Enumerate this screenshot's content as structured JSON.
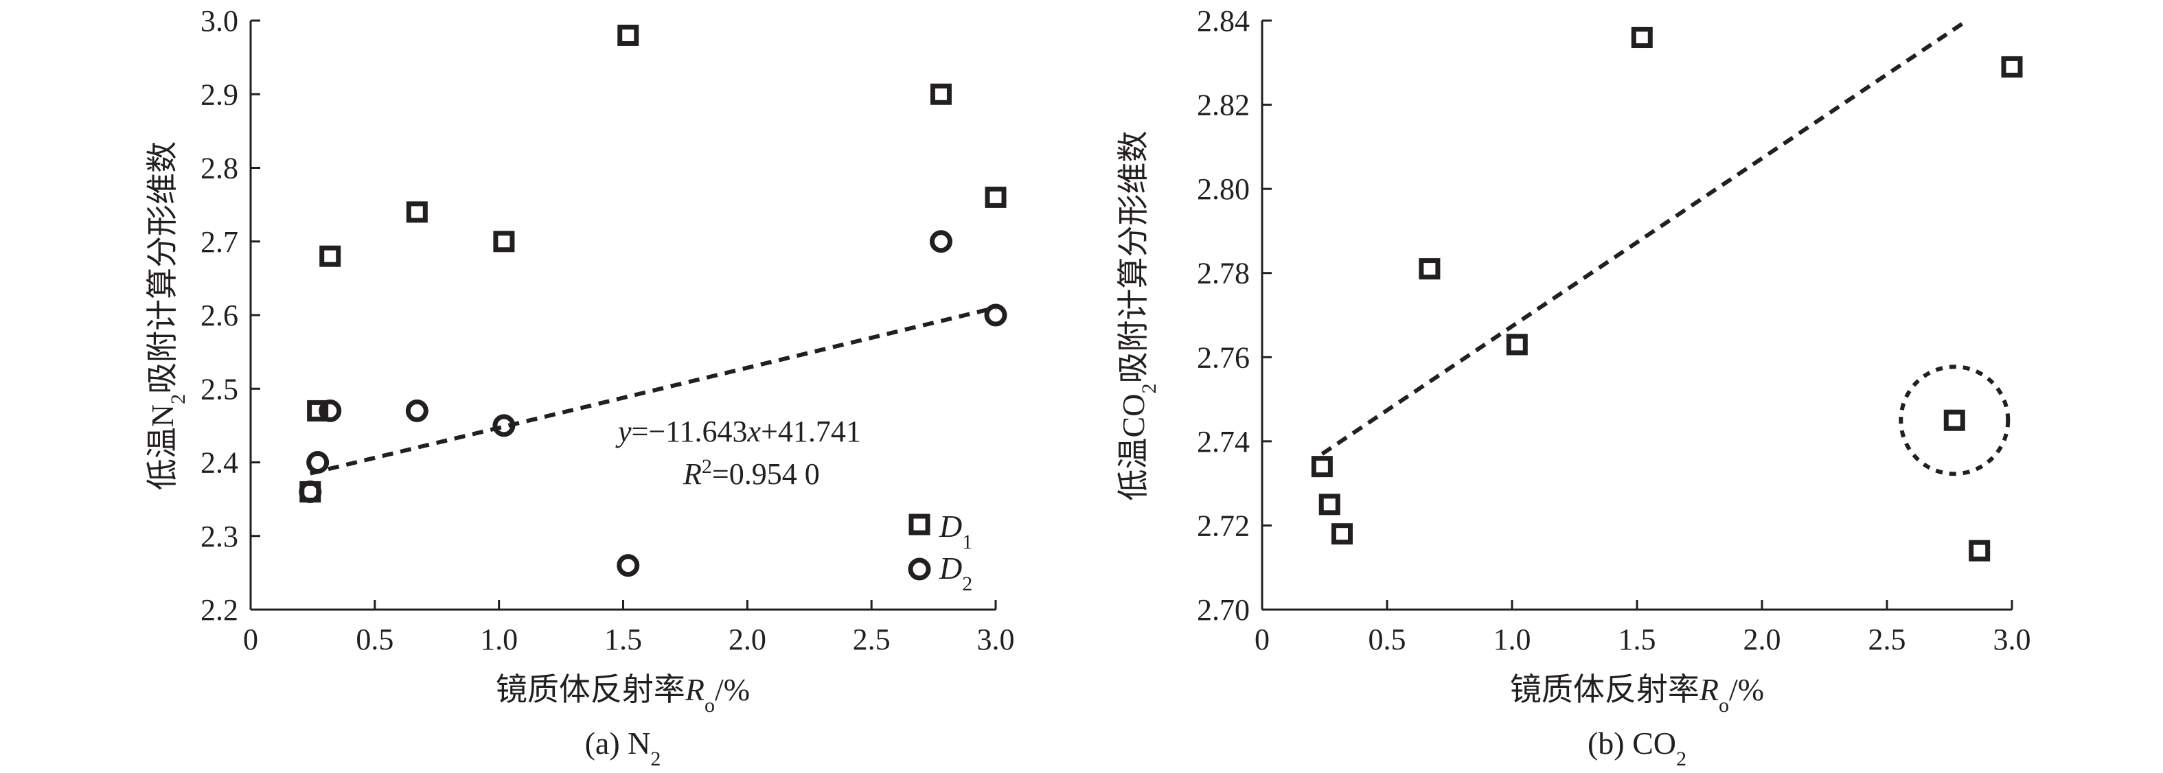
{
  "chart_data": [
    {
      "type": "scatter",
      "caption": "(a) N",
      "caption_sub": "2",
      "xlabel": "镜质体反射率",
      "xlabel_var": "R",
      "xlabel_var_sub": "o",
      "xlabel_unit": "/%",
      "ylabel_pre": "低温N",
      "ylabel_sub": "2",
      "ylabel_post": "吸附计算分形维数",
      "xlim": [
        0,
        3.0
      ],
      "ylim": [
        2.2,
        3.0
      ],
      "xticks": [
        "0",
        "0.5",
        "1.0",
        "1.5",
        "2.0",
        "2.5",
        "3.0"
      ],
      "yticks": [
        "2.2",
        "2.3",
        "2.4",
        "2.5",
        "2.6",
        "2.7",
        "2.8",
        "2.9",
        "3.0"
      ],
      "xtick_values": [
        0,
        0.5,
        1.0,
        1.5,
        2.0,
        2.5,
        3.0
      ],
      "ytick_values": [
        2.2,
        2.3,
        2.4,
        2.5,
        2.6,
        2.7,
        2.8,
        2.9,
        3.0
      ],
      "series": [
        {
          "name": "D",
          "name_sub": "1",
          "marker": "square",
          "x": [
            0.24,
            0.27,
            0.32,
            0.67,
            1.02,
            1.52,
            2.78,
            3.0
          ],
          "y": [
            2.36,
            2.47,
            2.68,
            2.74,
            2.7,
            2.98,
            2.9,
            2.76
          ]
        },
        {
          "name": "D",
          "name_sub": "2",
          "marker": "circle",
          "x": [
            0.24,
            0.27,
            0.32,
            0.67,
            1.02,
            1.52,
            2.78,
            3.0
          ],
          "y": [
            2.36,
            2.4,
            2.47,
            2.47,
            2.45,
            2.26,
            2.7,
            2.6
          ]
        }
      ],
      "trendline": {
        "style": "dashed",
        "x": [
          0.24,
          3.0
        ],
        "y": [
          2.385,
          2.61
        ]
      },
      "equation": {
        "y_var": "y",
        "middle": "=−11.643",
        "x_var": "x",
        "tail": "+41.741"
      },
      "r2": {
        "var": "R",
        "sup": "2",
        "value": "=0.954 0"
      },
      "legend_position": "bottom-right",
      "grid": false
    },
    {
      "type": "scatter",
      "caption": "(b) CO",
      "caption_sub": "2",
      "xlabel": "镜质体反射率",
      "xlabel_var": "R",
      "xlabel_var_sub": "o",
      "xlabel_unit": "/%",
      "ylabel_pre": "低温CO",
      "ylabel_sub": "2",
      "ylabel_post": "吸附计算分形维数",
      "xlim": [
        0,
        3.0
      ],
      "ylim": [
        2.7,
        2.84
      ],
      "xticks": [
        "0",
        "0.5",
        "1.0",
        "1.5",
        "2.0",
        "2.5",
        "3.0"
      ],
      "yticks": [
        "2.70",
        "2.72",
        "2.74",
        "2.76",
        "2.78",
        "2.80",
        "2.82",
        "2.84"
      ],
      "xtick_values": [
        0,
        0.5,
        1.0,
        1.5,
        2.0,
        2.5,
        3.0
      ],
      "ytick_values": [
        2.7,
        2.72,
        2.74,
        2.76,
        2.78,
        2.8,
        2.82,
        2.84
      ],
      "series": [
        {
          "marker": "square",
          "x": [
            0.24,
            0.27,
            0.32,
            0.67,
            1.02,
            1.52,
            2.77,
            2.87,
            3.0
          ],
          "y": [
            2.734,
            2.725,
            2.718,
            2.781,
            2.763,
            2.836,
            2.745,
            2.714,
            2.829
          ]
        }
      ],
      "trendline": {
        "style": "dashed",
        "x": [
          0.24,
          2.82
        ],
        "y": [
          2.737,
          2.84
        ]
      },
      "highlight_circle": {
        "x": 2.77,
        "y": 2.745
      },
      "grid": false
    }
  ]
}
